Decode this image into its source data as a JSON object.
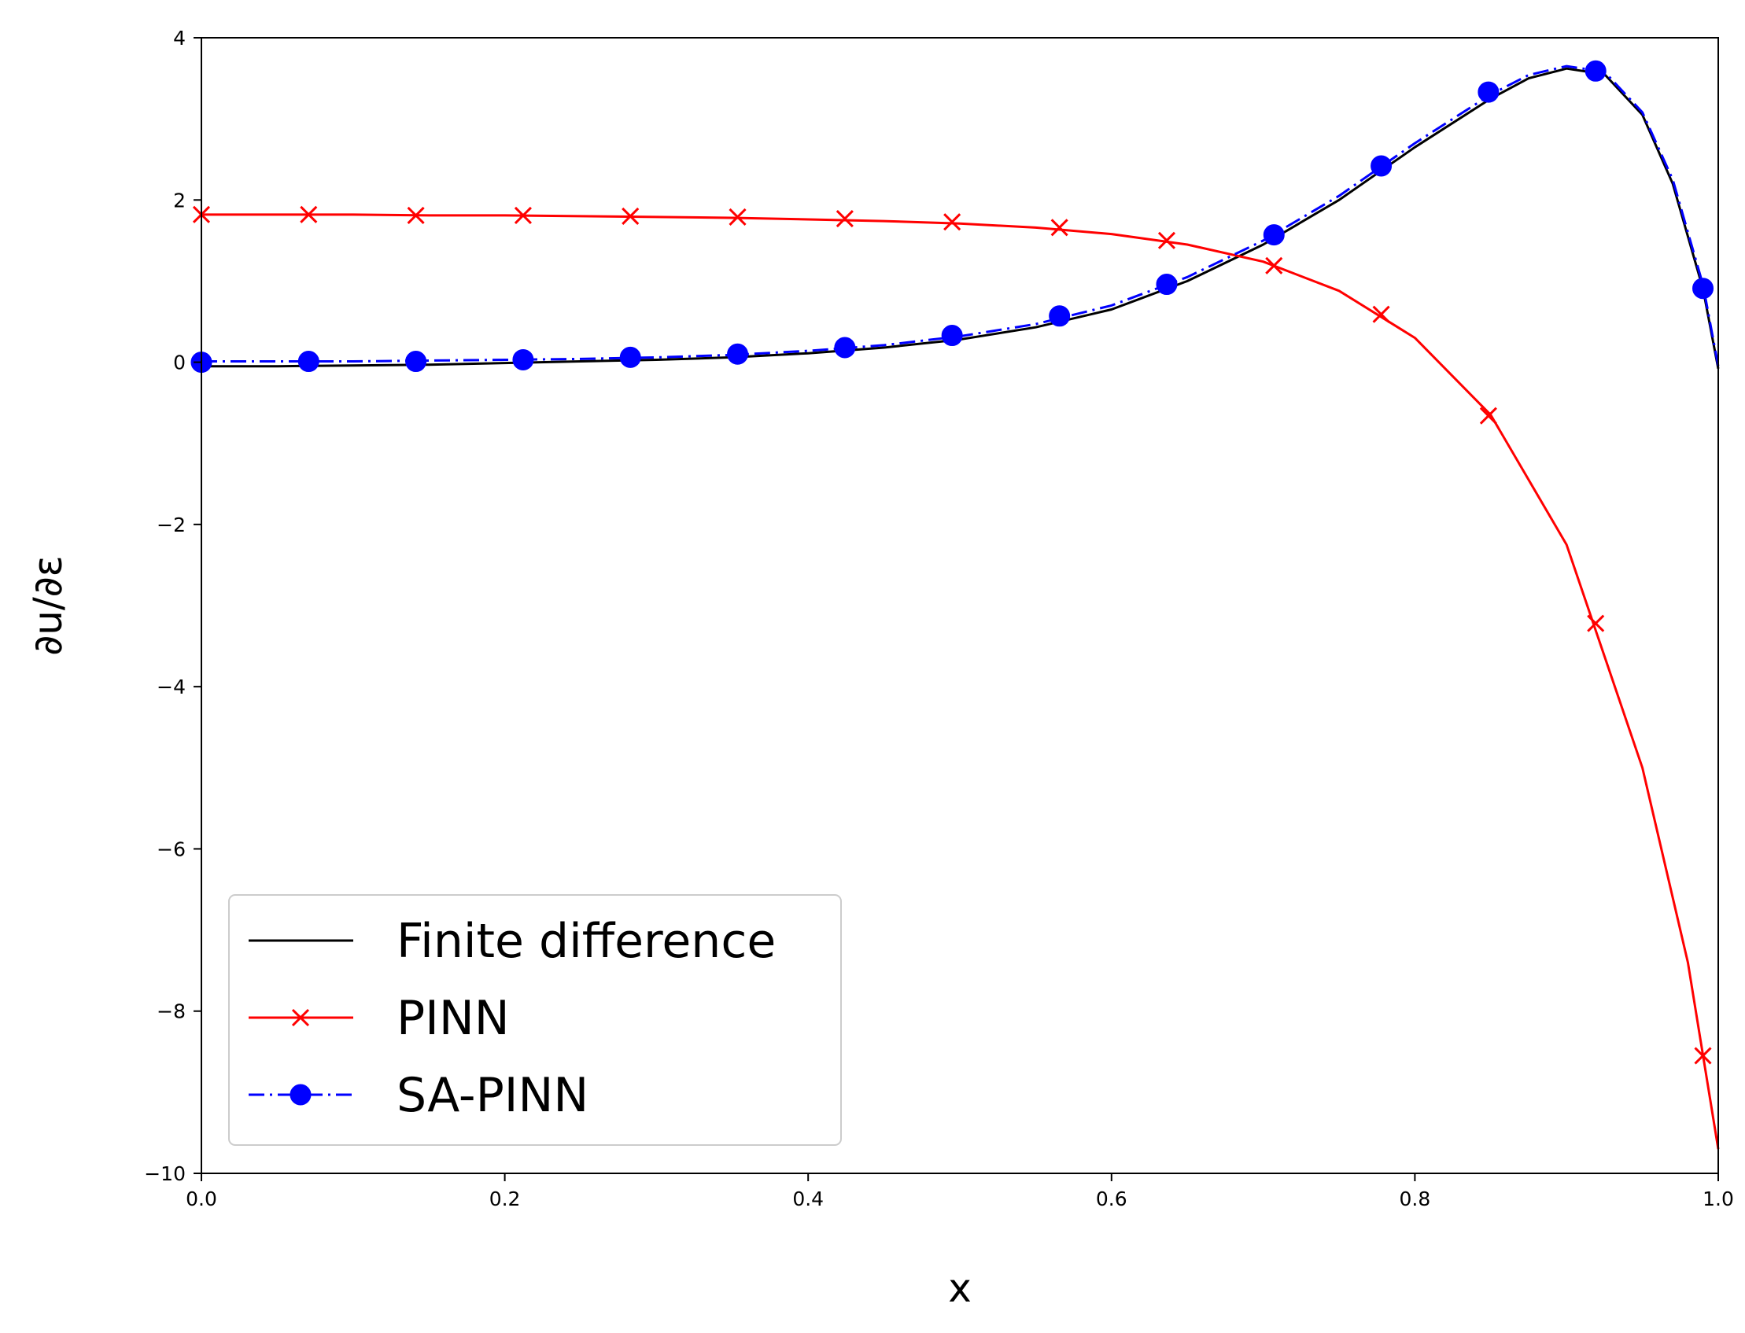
{
  "chart_data": {
    "type": "line",
    "xlabel": "x",
    "ylabel": "∂u/∂ε",
    "xlim": [
      0.0,
      1.0
    ],
    "ylim": [
      -10,
      4
    ],
    "xticks": [
      0.0,
      0.2,
      0.4,
      0.6,
      0.8,
      1.0
    ],
    "xtick_labels": [
      "0.0",
      "0.2",
      "0.4",
      "0.6",
      "0.8",
      "1.0"
    ],
    "yticks": [
      -10,
      -8,
      -6,
      -4,
      -2,
      0,
      2,
      4
    ],
    "ytick_labels": [
      "−10",
      "−8",
      "−6",
      "−4",
      "−2",
      "0",
      "2",
      "4"
    ],
    "grid": false,
    "legend_position": "lower-left",
    "series": [
      {
        "name": "Finite difference",
        "color": "#000000",
        "line": "solid",
        "marker": "none",
        "x": [
          0.0,
          0.05,
          0.1,
          0.15,
          0.2,
          0.25,
          0.3,
          0.35,
          0.4,
          0.45,
          0.5,
          0.55,
          0.6,
          0.65,
          0.7,
          0.75,
          0.8,
          0.85,
          0.875,
          0.9,
          0.925,
          0.95,
          0.97,
          0.99,
          1.0
        ],
        "y": [
          -0.05,
          -0.05,
          -0.04,
          -0.03,
          -0.01,
          0.01,
          0.03,
          0.06,
          0.11,
          0.18,
          0.28,
          0.43,
          0.65,
          1.0,
          1.45,
          2.0,
          2.65,
          3.25,
          3.5,
          3.62,
          3.55,
          3.05,
          2.2,
          0.9,
          -0.08
        ]
      },
      {
        "name": "PINN",
        "color": "#ff0000",
        "line": "solid",
        "marker": "x",
        "x": [
          0.0,
          0.05,
          0.1,
          0.15,
          0.2,
          0.25,
          0.3,
          0.35,
          0.4,
          0.45,
          0.5,
          0.55,
          0.6,
          0.65,
          0.7,
          0.75,
          0.8,
          0.85,
          0.9,
          0.95,
          0.98,
          1.0
        ],
        "y": [
          1.82,
          1.82,
          1.82,
          1.81,
          1.81,
          1.8,
          1.79,
          1.78,
          1.76,
          1.74,
          1.71,
          1.66,
          1.58,
          1.45,
          1.24,
          0.88,
          0.3,
          -0.65,
          -2.25,
          -5.0,
          -7.4,
          -9.7
        ],
        "marker_x": [
          0.0,
          0.0707,
          0.1414,
          0.2121,
          0.2828,
          0.3535,
          0.4242,
          0.4949,
          0.5657,
          0.6364,
          0.7071,
          0.7778,
          0.8485,
          0.9192,
          0.9899
        ],
        "marker_y": [
          1.82,
          1.82,
          1.81,
          1.81,
          1.8,
          1.79,
          1.77,
          1.73,
          1.66,
          1.5,
          1.19,
          0.59,
          -0.66,
          -3.22,
          -8.55
        ]
      },
      {
        "name": "SA-PINN",
        "color": "#0000ff",
        "line": "dashdot",
        "marker": "o",
        "x": [
          0.0,
          0.05,
          0.1,
          0.15,
          0.2,
          0.25,
          0.3,
          0.35,
          0.4,
          0.45,
          0.5,
          0.55,
          0.6,
          0.65,
          0.7,
          0.75,
          0.8,
          0.85,
          0.875,
          0.9,
          0.925,
          0.95,
          0.97,
          0.99,
          1.0
        ],
        "y": [
          0.01,
          0.01,
          0.01,
          0.02,
          0.03,
          0.04,
          0.06,
          0.09,
          0.14,
          0.21,
          0.32,
          0.47,
          0.7,
          1.05,
          1.5,
          2.05,
          2.7,
          3.3,
          3.54,
          3.65,
          3.58,
          3.08,
          2.25,
          0.95,
          -0.05
        ],
        "marker_x": [
          0.0,
          0.0707,
          0.1414,
          0.2121,
          0.2828,
          0.3535,
          0.4242,
          0.4949,
          0.5657,
          0.6364,
          0.7071,
          0.7778,
          0.8485,
          0.9192,
          0.9899
        ],
        "marker_y": [
          0.0,
          0.01,
          0.01,
          0.03,
          0.06,
          0.1,
          0.18,
          0.33,
          0.57,
          0.96,
          1.57,
          2.42,
          3.33,
          3.59,
          0.91
        ]
      }
    ]
  }
}
